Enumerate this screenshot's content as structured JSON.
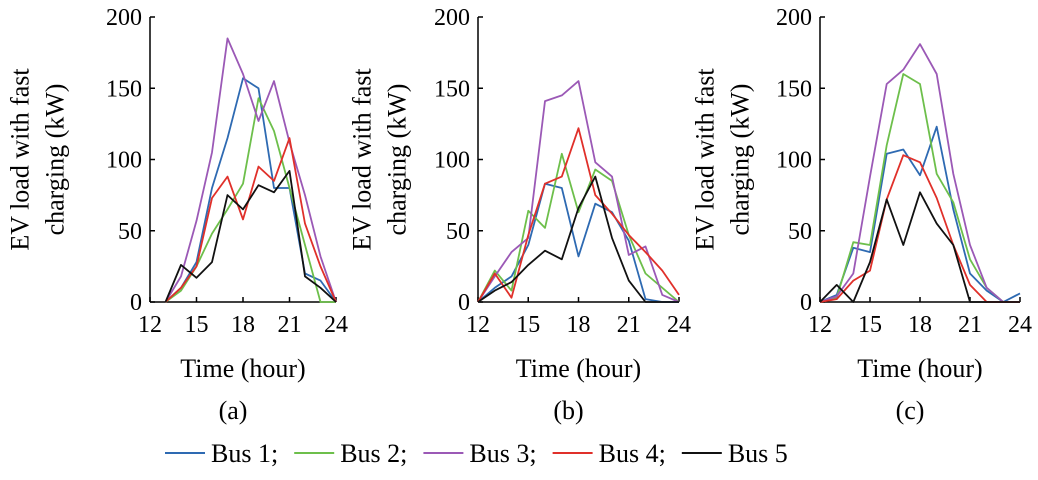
{
  "legend": {
    "separator": ";",
    "items": [
      {
        "name": "Bus 1",
        "color": "#2e6ab2"
      },
      {
        "name": "Bus 2",
        "color": "#6dbf4b"
      },
      {
        "name": "Bus 3",
        "color": "#9b59b6"
      },
      {
        "name": "Bus 4",
        "color": "#e0302a"
      },
      {
        "name": "Bus 5",
        "color": "#111111"
      }
    ]
  },
  "chart_data": [
    {
      "type": "line",
      "panel_label": "(a)",
      "xlabel": "Time (hour)",
      "ylabel_lines": [
        "EV load with fast",
        "charging (kW)"
      ],
      "xlim": [
        12,
        24
      ],
      "ylim": [
        0,
        200
      ],
      "xticks": [
        12,
        15,
        18,
        21,
        24
      ],
      "yticks": [
        0,
        50,
        100,
        150,
        200
      ],
      "grid": false,
      "x": [
        13,
        14,
        15,
        16,
        17,
        18,
        19,
        20,
        21,
        22,
        23,
        24
      ],
      "series": [
        {
          "name": "Bus 1",
          "values": [
            0,
            10,
            28,
            80,
            115,
            157,
            150,
            80,
            80,
            20,
            15,
            0
          ]
        },
        {
          "name": "Bus 2",
          "values": [
            0,
            8,
            25,
            48,
            65,
            83,
            143,
            120,
            80,
            40,
            0,
            0
          ]
        },
        {
          "name": "Bus 3",
          "values": [
            0,
            18,
            57,
            105,
            185,
            160,
            127,
            155,
            112,
            75,
            32,
            0
          ]
        },
        {
          "name": "Bus 4",
          "values": [
            0,
            10,
            25,
            73,
            88,
            58,
            95,
            85,
            115,
            55,
            25,
            0
          ]
        },
        {
          "name": "Bus 5",
          "values": [
            0,
            26,
            17,
            28,
            75,
            65,
            82,
            77,
            92,
            18,
            10,
            0
          ]
        }
      ]
    },
    {
      "type": "line",
      "panel_label": "(b)",
      "xlabel": "Time (hour)",
      "ylabel_lines": [
        "EV load with fast",
        "charging (kW)"
      ],
      "xlim": [
        12,
        24
      ],
      "ylim": [
        0,
        200
      ],
      "xticks": [
        12,
        15,
        18,
        21,
        24
      ],
      "yticks": [
        0,
        50,
        100,
        150,
        200
      ],
      "grid": false,
      "x": [
        12,
        13,
        14,
        15,
        16,
        17,
        18,
        19,
        20,
        21,
        22,
        23,
        24
      ],
      "series": [
        {
          "name": "Bus 1",
          "values": [
            0,
            10,
            18,
            40,
            83,
            80,
            32,
            69,
            63,
            43,
            2,
            0,
            0
          ]
        },
        {
          "name": "Bus 2",
          "values": [
            0,
            22,
            8,
            64,
            52,
            104,
            63,
            93,
            85,
            47,
            20,
            10,
            0
          ]
        },
        {
          "name": "Bus 3",
          "values": [
            0,
            18,
            35,
            45,
            141,
            145,
            155,
            98,
            88,
            33,
            39,
            5,
            0
          ]
        },
        {
          "name": "Bus 4",
          "values": [
            0,
            20,
            3,
            47,
            83,
            88,
            122,
            75,
            62,
            47,
            35,
            22,
            5
          ]
        },
        {
          "name": "Bus 5",
          "values": [
            0,
            8,
            14,
            26,
            36,
            30,
            66,
            88,
            45,
            15,
            0,
            0,
            0
          ]
        }
      ]
    },
    {
      "type": "line",
      "panel_label": "(c)",
      "xlabel": "Time (hour)",
      "ylabel_lines": [
        "EV load with fast",
        "charging (kW)"
      ],
      "xlim": [
        12,
        24
      ],
      "ylim": [
        0,
        200
      ],
      "xticks": [
        12,
        15,
        18,
        21,
        24
      ],
      "yticks": [
        0,
        50,
        100,
        150,
        200
      ],
      "grid": false,
      "x": [
        12,
        13,
        14,
        15,
        16,
        17,
        18,
        19,
        20,
        21,
        22,
        23,
        24
      ],
      "series": [
        {
          "name": "Bus 1",
          "values": [
            0,
            5,
            38,
            35,
            104,
            107,
            89,
            123,
            65,
            20,
            8,
            0,
            6
          ]
        },
        {
          "name": "Bus 2",
          "values": [
            0,
            3,
            42,
            40,
            110,
            160,
            153,
            90,
            70,
            30,
            10,
            0,
            0
          ]
        },
        {
          "name": "Bus 3",
          "values": [
            0,
            4,
            20,
            88,
            153,
            163,
            181,
            160,
            90,
            40,
            10,
            0,
            0
          ]
        },
        {
          "name": "Bus 4",
          "values": [
            0,
            2,
            15,
            22,
            72,
            103,
            98,
            73,
            40,
            12,
            0,
            0,
            0
          ]
        },
        {
          "name": "Bus 5",
          "values": [
            0,
            12,
            0,
            28,
            72,
            40,
            77,
            55,
            40,
            0,
            0,
            0,
            0
          ]
        }
      ]
    }
  ]
}
